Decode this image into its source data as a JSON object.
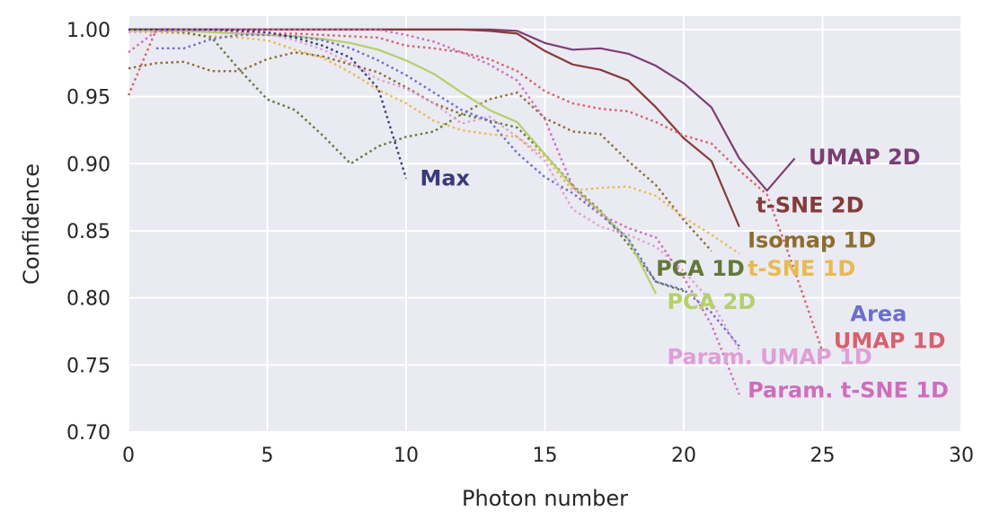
{
  "chart_data": {
    "type": "line",
    "title": "",
    "xlabel": "Photon number",
    "ylabel": "Confidence",
    "xlim": [
      0,
      30
    ],
    "ylim": [
      0.7,
      1.01
    ],
    "xticks": [
      "0",
      "5",
      "10",
      "15",
      "20",
      "25",
      "30"
    ],
    "yticks": [
      "0.70",
      "0.75",
      "0.80",
      "0.85",
      "0.90",
      "0.95",
      "1.00"
    ],
    "grid": true,
    "background": "#eaeaf2",
    "series": [
      {
        "name": "UMAP 2D",
        "color": "#7b3f72",
        "style": "solid",
        "x": [
          0,
          1,
          2,
          3,
          4,
          5,
          6,
          7,
          8,
          9,
          10,
          11,
          12,
          13,
          14,
          15,
          16,
          17,
          18,
          19,
          20,
          21,
          22,
          23,
          24
        ],
        "y": [
          1.0,
          1.0,
          1.0,
          1.0,
          1.0,
          1.0,
          1.0,
          1.0,
          1.0,
          1.0,
          1.0,
          1.0,
          1.0,
          1.0,
          0.999,
          0.99,
          0.985,
          0.986,
          0.982,
          0.973,
          0.96,
          0.942,
          0.904,
          0.88,
          0.904
        ],
        "label_pos": [
          24.5,
          0.905
        ]
      },
      {
        "name": "t-SNE 2D",
        "color": "#843c39",
        "style": "solid",
        "x": [
          0,
          1,
          2,
          3,
          4,
          5,
          6,
          7,
          8,
          9,
          10,
          11,
          12,
          13,
          14,
          15,
          16,
          17,
          18,
          19,
          20,
          21,
          22
        ],
        "y": [
          1.0,
          1.0,
          1.0,
          1.0,
          1.0,
          1.0,
          1.0,
          1.0,
          1.0,
          1.0,
          1.0,
          1.0,
          1.0,
          0.999,
          0.997,
          0.984,
          0.974,
          0.97,
          0.962,
          0.942,
          0.919,
          0.902,
          0.853
        ],
        "label_pos": [
          22.6,
          0.869
        ]
      },
      {
        "name": "Isomap 1D",
        "color": "#8c6d31",
        "style": "dotted",
        "x": [
          0,
          1,
          2,
          3,
          4,
          5,
          6,
          7,
          8,
          9,
          10,
          11,
          12,
          13,
          14,
          15,
          16,
          17,
          18,
          19,
          20,
          21
        ],
        "y": [
          0.971,
          0.975,
          0.976,
          0.969,
          0.969,
          0.978,
          0.983,
          0.98,
          0.974,
          0.968,
          0.957,
          0.945,
          0.937,
          0.948,
          0.953,
          0.934,
          0.924,
          0.922,
          0.902,
          0.884,
          0.858,
          0.835
        ],
        "label_pos": [
          22.3,
          0.843
        ]
      },
      {
        "name": "t-SNE 1D",
        "color": "#e7ba52",
        "style": "dotted",
        "x": [
          0,
          1,
          2,
          3,
          4,
          5,
          6,
          7,
          8,
          9,
          10,
          11,
          12,
          13,
          14,
          15,
          16,
          17,
          18,
          19,
          20,
          21,
          22
        ],
        "y": [
          0.998,
          0.998,
          0.997,
          0.995,
          0.994,
          0.992,
          0.985,
          0.979,
          0.968,
          0.955,
          0.945,
          0.932,
          0.925,
          0.922,
          0.92,
          0.905,
          0.88,
          0.882,
          0.883,
          0.876,
          0.86,
          0.847,
          0.833
        ],
        "label_pos": [
          22.3,
          0.822
        ]
      },
      {
        "name": "PCA 1D",
        "color": "#637939",
        "style": "dotted",
        "x": [
          0,
          1,
          2,
          3,
          4,
          5,
          6,
          7,
          8,
          9,
          10,
          11,
          12,
          13,
          14,
          15,
          16,
          17,
          18,
          19,
          20
        ],
        "y": [
          0.999,
          0.999,
          0.998,
          0.994,
          0.97,
          0.948,
          0.94,
          0.921,
          0.9,
          0.913,
          0.92,
          0.924,
          0.937,
          0.932,
          0.927,
          0.907,
          0.884,
          0.865,
          0.84,
          0.812,
          0.805
        ],
        "label_pos": [
          19.0,
          0.822
        ]
      },
      {
        "name": "PCA 2D",
        "color": "#b5cf6b",
        "style": "solid",
        "x": [
          0,
          1,
          2,
          3,
          4,
          5,
          6,
          7,
          8,
          9,
          10,
          11,
          12,
          13,
          14,
          15,
          16,
          17,
          18,
          19
        ],
        "y": [
          0.999,
          0.999,
          0.999,
          0.998,
          0.997,
          0.996,
          0.995,
          0.993,
          0.99,
          0.985,
          0.977,
          0.967,
          0.953,
          0.94,
          0.931,
          0.907,
          0.883,
          0.864,
          0.844,
          0.803
        ],
        "label_pos": [
          19.4,
          0.797
        ]
      },
      {
        "name": "Area",
        "color": "#6b6ecf",
        "style": "dotted",
        "x": [
          1,
          2,
          3,
          4,
          5,
          6,
          7,
          8,
          9,
          10,
          11,
          12,
          13,
          14,
          15,
          16,
          17,
          18,
          19,
          20,
          21,
          22
        ],
        "y": [
          0.986,
          0.986,
          0.993,
          0.996,
          0.996,
          0.995,
          0.992,
          0.986,
          0.977,
          0.966,
          0.953,
          0.94,
          0.932,
          0.908,
          0.89,
          0.878,
          0.862,
          0.844,
          0.812,
          0.806,
          0.789,
          0.764
        ],
        "label_pos": [
          26.0,
          0.788
        ]
      },
      {
        "name": "UMAP 1D",
        "color": "#d6616b",
        "style": "dotted",
        "x": [
          0,
          1,
          2,
          3,
          4,
          5,
          6,
          7,
          8,
          9,
          10,
          11,
          12,
          13,
          14,
          15,
          16,
          17,
          18,
          19,
          20,
          21,
          22,
          23,
          24,
          25
        ],
        "y": [
          0.951,
          1.0,
          1.0,
          0.999,
          0.998,
          0.997,
          0.997,
          0.996,
          0.995,
          0.994,
          0.988,
          0.986,
          0.983,
          0.978,
          0.969,
          0.954,
          0.945,
          0.941,
          0.939,
          0.931,
          0.921,
          0.915,
          0.895,
          0.877,
          0.82,
          0.76
        ],
        "label_pos": [
          25.4,
          0.768
        ]
      },
      {
        "name": "Param. UMAP 1D",
        "color": "#de9ed6",
        "style": "dotted",
        "x": [
          0,
          1,
          2,
          3,
          4,
          5,
          6,
          7,
          8,
          9,
          10,
          11,
          12,
          13,
          14,
          15,
          16,
          17,
          18,
          19,
          20,
          21,
          22
        ],
        "y": [
          0.998,
          0.999,
          0.999,
          0.999,
          0.998,
          0.997,
          0.992,
          0.985,
          0.975,
          0.963,
          0.956,
          0.945,
          0.93,
          0.935,
          0.92,
          0.902,
          0.866,
          0.853,
          0.847,
          0.838,
          0.82,
          0.797,
          0.761
        ],
        "label_pos": [
          19.4,
          0.756
        ]
      },
      {
        "name": "Param. t-SNE 1D",
        "color": "#ce6dbd",
        "style": "dotted",
        "x": [
          0,
          1,
          2,
          3,
          4,
          5,
          6,
          7,
          8,
          9,
          10,
          11,
          12,
          13,
          14,
          15,
          16,
          17,
          18,
          19,
          20,
          21,
          22
        ],
        "y": [
          0.983,
          0.999,
          1.0,
          1.0,
          1.0,
          1.0,
          1.0,
          1.0,
          1.0,
          1.0,
          0.996,
          0.991,
          0.983,
          0.974,
          0.962,
          0.933,
          0.883,
          0.862,
          0.852,
          0.845,
          0.815,
          0.78,
          0.728
        ],
        "label_pos": [
          22.3,
          0.731
        ]
      },
      {
        "name": "Max",
        "color": "#393b79",
        "style": "dotted",
        "x": [
          0,
          1,
          2,
          3,
          4,
          5,
          6,
          7,
          8,
          9,
          10
        ],
        "y": [
          1.0,
          1.0,
          1.0,
          1.0,
          0.999,
          0.998,
          0.994,
          0.988,
          0.979,
          0.956,
          0.889
        ],
        "label_pos": [
          10.5,
          0.889
        ]
      }
    ]
  }
}
